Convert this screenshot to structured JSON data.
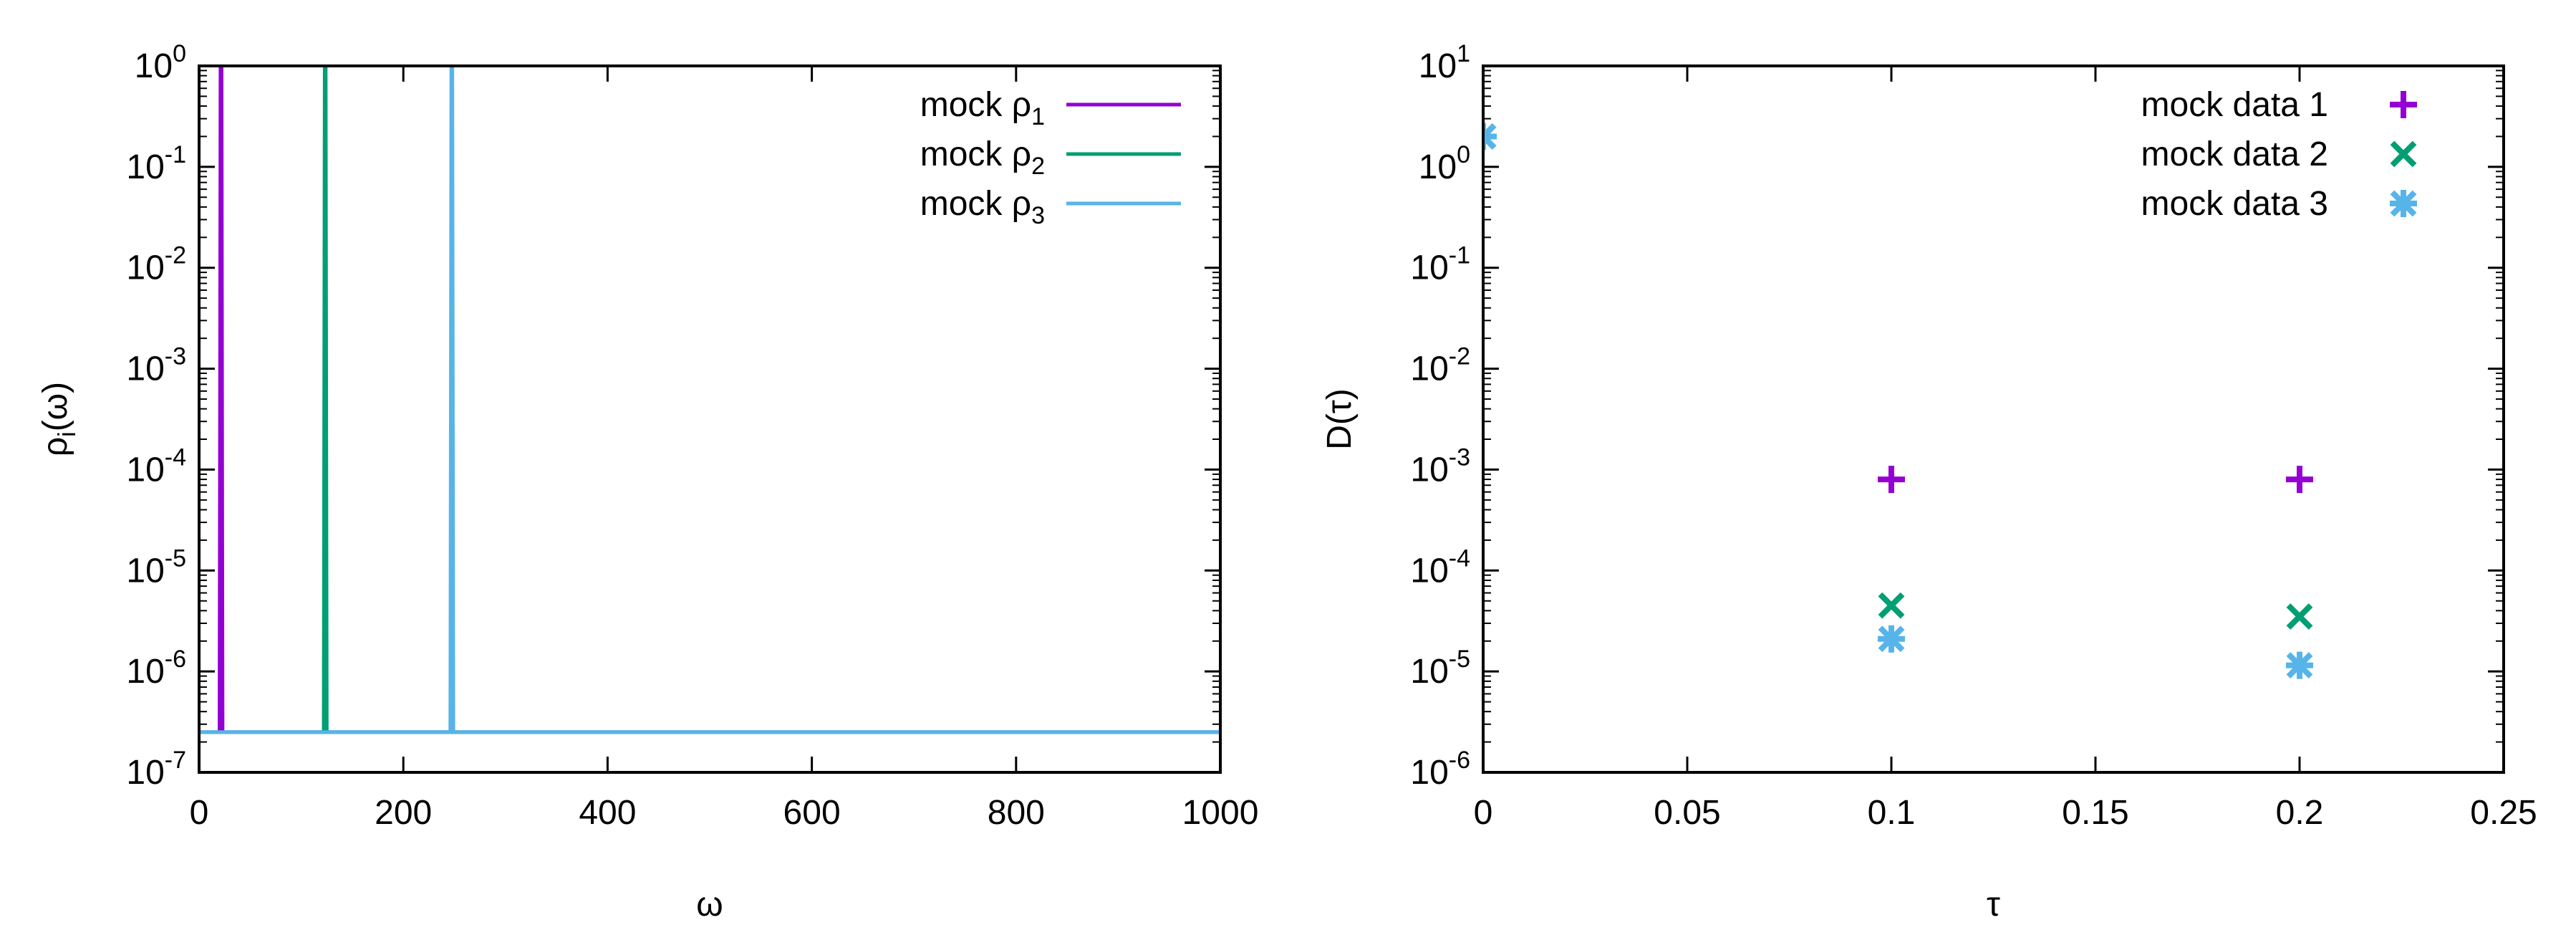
{
  "chart_data": [
    {
      "type": "line",
      "xlabel": "ω",
      "ylabel": {
        "base": "ρ",
        "sub": "i",
        "rest": "(ω)"
      },
      "xlim": [
        0,
        1000
      ],
      "ylim_exp": [
        -7,
        0
      ],
      "yscale": "log",
      "x_ticks": [
        "0",
        "200",
        "400",
        "600",
        "800",
        "1000"
      ],
      "x_tick_values": [
        0,
        200,
        400,
        600,
        800,
        1000
      ],
      "y_tick_exponents": [
        "-7",
        "-6",
        "-5",
        "-4",
        "-3",
        "-2",
        "-1",
        "0"
      ],
      "legend_position": "top-right",
      "baseline": 2.5e-07,
      "series": [
        {
          "name": "mock ρ",
          "sub": "1",
          "color": "#9400d3",
          "points": [
            [
              0,
              2.5e-07
            ],
            [
              20,
              2.5e-07
            ],
            [
              21,
              1.0
            ],
            [
              22,
              1.0
            ],
            [
              23,
              2.5e-07
            ],
            [
              1000,
              2.5e-07
            ]
          ]
        },
        {
          "name": "mock ρ",
          "sub": "2",
          "color": "#009e73",
          "points": [
            [
              0,
              2.5e-07
            ],
            [
              122,
              2.5e-07
            ],
            [
              123,
              1.0
            ],
            [
              124,
              1.0
            ],
            [
              125,
              2.5e-07
            ],
            [
              1000,
              2.5e-07
            ]
          ]
        },
        {
          "name": "mock ρ",
          "sub": "3",
          "color": "#56b4e9",
          "points": [
            [
              0,
              2.5e-07
            ],
            [
              246,
              2.5e-07
            ],
            [
              247,
              1.0
            ],
            [
              248,
              1.0
            ],
            [
              249,
              2.5e-07
            ],
            [
              1000,
              2.5e-07
            ]
          ]
        }
      ]
    },
    {
      "type": "scatter",
      "xlabel": "τ",
      "ylabel": "D(τ)",
      "xlim": [
        0,
        0.25
      ],
      "ylim_exp": [
        -6,
        1
      ],
      "yscale": "log",
      "x_ticks": [
        "0",
        "0.05",
        "0.1",
        "0.15",
        "0.2",
        "0.25"
      ],
      "x_tick_values": [
        0,
        0.05,
        0.1,
        0.15,
        0.2,
        0.25
      ],
      "y_tick_exponents": [
        "-6",
        "-5",
        "-4",
        "-3",
        "-2",
        "-1",
        "0",
        "1"
      ],
      "legend_position": "top-right",
      "series": [
        {
          "name": "mock data 1",
          "color": "#9400d3",
          "marker": "plus",
          "points": [
            [
              0,
              2.0
            ],
            [
              0.1,
              0.0008
            ],
            [
              0.2,
              0.0008
            ]
          ]
        },
        {
          "name": "mock data 2",
          "color": "#009e73",
          "marker": "cross",
          "points": [
            [
              0,
              2.0
            ],
            [
              0.1,
              4.5e-05
            ],
            [
              0.2,
              3.5e-05
            ]
          ]
        },
        {
          "name": "mock data 3",
          "color": "#56b4e9",
          "marker": "star",
          "points": [
            [
              0,
              2.0
            ],
            [
              0.1,
              2.1e-05
            ],
            [
              0.2,
              1.15e-05
            ]
          ]
        }
      ]
    }
  ]
}
